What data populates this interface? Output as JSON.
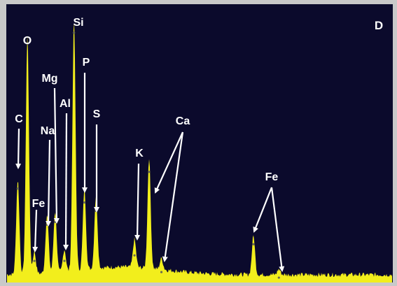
{
  "panel_label": "D",
  "colors": {
    "background": "#0b0a2c",
    "spectrum": "#f2ee1c",
    "annotation": "#ffffff",
    "frame": "#c9c9c9"
  },
  "chart_data": {
    "type": "area",
    "title": "",
    "xlabel": "",
    "ylabel": "",
    "x_unit": "keV",
    "xlim": [
      0,
      10
    ],
    "ylim": [
      0,
      100
    ],
    "grid": false,
    "baseline": 2.0,
    "peaks": [
      {
        "element": "C",
        "energy": 0.28,
        "height": 34
      },
      {
        "element": "O",
        "energy": 0.53,
        "height": 86
      },
      {
        "element": "Fe",
        "energy": 0.71,
        "height": 8
      },
      {
        "element": "Na",
        "energy": 1.04,
        "height": 21
      },
      {
        "element": "Mg",
        "energy": 1.25,
        "height": 22
      },
      {
        "element": "Al",
        "energy": 1.49,
        "height": 8
      },
      {
        "element": "Si",
        "energy": 1.74,
        "height": 90
      },
      {
        "element": "P",
        "energy": 2.01,
        "height": 29
      },
      {
        "element": "S",
        "energy": 2.31,
        "height": 26
      },
      {
        "element": "K",
        "energy": 3.31,
        "height": 10
      },
      {
        "element": "Ca",
        "energy": 3.69,
        "height": 40
      },
      {
        "element": "Ca",
        "energy": 4.01,
        "height": 4
      },
      {
        "element": "Fe",
        "energy": 6.4,
        "height": 14
      },
      {
        "element": "Fe",
        "energy": 7.06,
        "height": 2
      }
    ],
    "labels": [
      {
        "text": "C",
        "peak_indices": [
          0
        ]
      },
      {
        "text": "O",
        "peak_indices": []
      },
      {
        "text": "Fe",
        "peak_indices": [
          2
        ]
      },
      {
        "text": "Na",
        "peak_indices": [
          3
        ]
      },
      {
        "text": "Mg",
        "peak_indices": [
          4
        ]
      },
      {
        "text": "Al",
        "peak_indices": [
          5
        ]
      },
      {
        "text": "Si",
        "peak_indices": []
      },
      {
        "text": "P",
        "peak_indices": [
          7
        ]
      },
      {
        "text": "S",
        "peak_indices": [
          8
        ]
      },
      {
        "text": "K",
        "peak_indices": [
          9
        ]
      },
      {
        "text": "Ca",
        "peak_indices": [
          10,
          11
        ]
      },
      {
        "text": "Fe",
        "peak_indices": [
          12,
          13
        ]
      }
    ]
  }
}
